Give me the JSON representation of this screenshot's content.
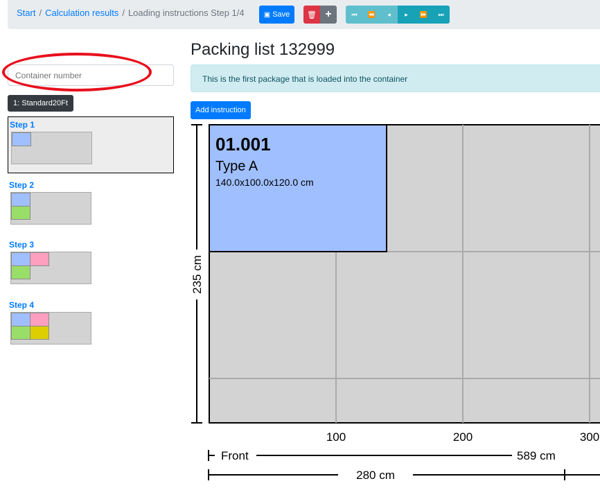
{
  "breadcrumb": {
    "start": "Start",
    "results": "Calculation results",
    "current": "Loading instructions Step 1/4"
  },
  "toolbar": {
    "save": "Save",
    "save_icon": "floppy-icon",
    "delete_icon": "trash-icon",
    "add": "+",
    "nav": [
      {
        "icon": "first-icon",
        "glyph": "⏮"
      },
      {
        "icon": "rewind-icon",
        "glyph": "⏪"
      },
      {
        "icon": "step-back-icon",
        "glyph": "◂"
      },
      {
        "icon": "step-forward-icon",
        "glyph": "▸"
      },
      {
        "icon": "fast-forward-icon",
        "glyph": "⏩"
      },
      {
        "icon": "last-icon",
        "glyph": "⏭"
      }
    ]
  },
  "sidebar": {
    "container_placeholder": "Container number",
    "container_badge": "1: Standard20Ft",
    "steps": [
      {
        "label": "Step 1"
      },
      {
        "label": "Step 2"
      },
      {
        "label": "Step 3"
      },
      {
        "label": "Step 4"
      }
    ]
  },
  "main": {
    "title": "Packing list 132999",
    "info": "This is the first package that is loaded into the container",
    "add_instruction": "Add instruction"
  },
  "colors": {
    "blue": "#a0bfff",
    "green": "#9ade6a",
    "pink": "#ff9fbf",
    "yellow": "#dcce00",
    "container": "#d3d3d3"
  },
  "plan": {
    "package": {
      "id": "01.001",
      "type": "Type A",
      "dims": "140.0x100.0x120.0 cm"
    },
    "height_label": "235 cm",
    "ticks": [
      "100",
      "200",
      "300"
    ],
    "front_label": "Front",
    "length_label": "589 cm",
    "width_label": "280 cm"
  }
}
